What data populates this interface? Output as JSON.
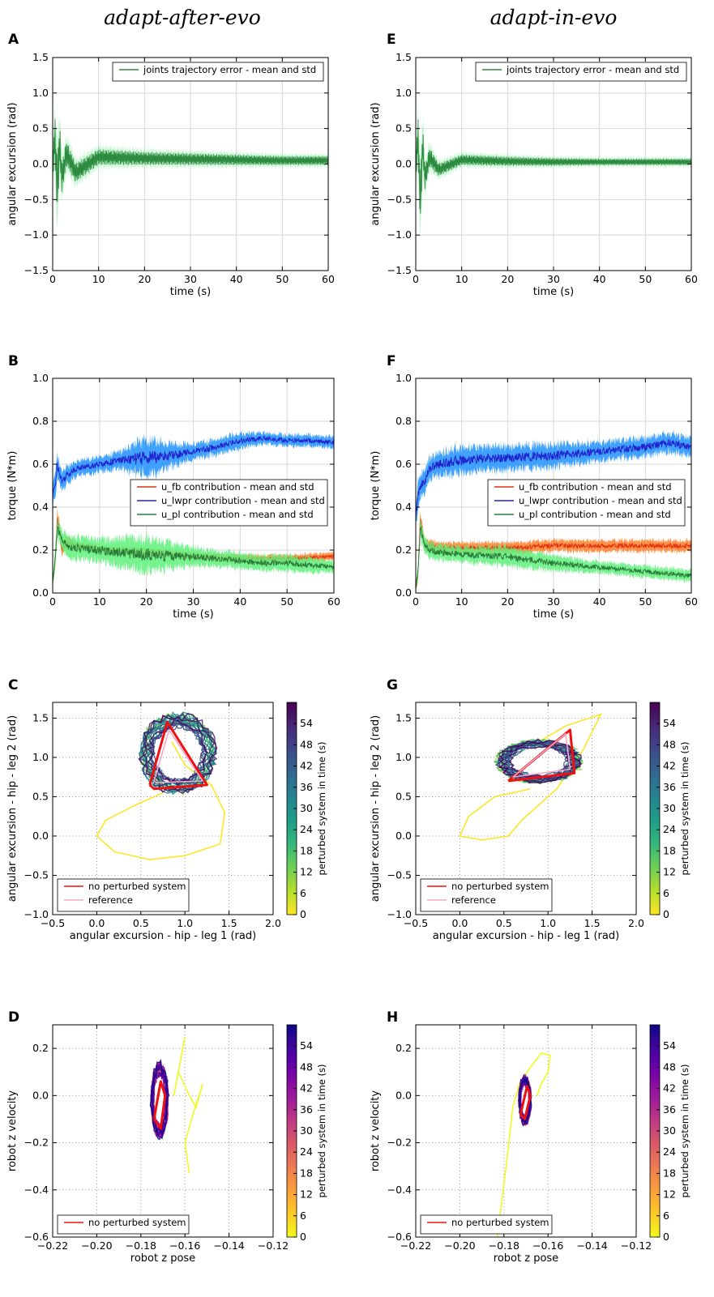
{
  "columns": [
    "adapt-after-evo",
    "adapt-in-evo"
  ],
  "colormaps": {
    "viridis_r": [
      "#fde725",
      "#b5de2b",
      "#6ece58",
      "#35b779",
      "#1f9e89",
      "#26828e",
      "#31688e",
      "#3e4989",
      "#482878",
      "#440154"
    ],
    "plasma_r": [
      "#f0f921",
      "#fdca26",
      "#fb9f3a",
      "#ed7953",
      "#d8576b",
      "#bd3786",
      "#9c179e",
      "#7201a8",
      "#46039f",
      "#0d0887"
    ]
  },
  "chart_data": [
    {
      "panel": "A",
      "type": "line",
      "xlabel": "time (s)",
      "ylabel": "angular excursion (rad)",
      "xlim": [
        0,
        60
      ],
      "ylim": [
        -1.5,
        1.5
      ],
      "xticks": [
        0,
        10,
        20,
        30,
        40,
        50,
        60
      ],
      "yticks": [
        -1.5,
        -1.0,
        -0.5,
        0.0,
        0.5,
        1.0,
        1.5
      ],
      "grid": true,
      "legend_position": "upper right",
      "series": [
        {
          "name": "joints trajectory error - mean and std",
          "color": "#2d8a3f",
          "band_color": "#7ee89a",
          "x": [
            0,
            0.5,
            1,
            1.5,
            2,
            3,
            5,
            10,
            20,
            30,
            40,
            50,
            60
          ],
          "mean": [
            0.0,
            0.35,
            -0.35,
            0.3,
            -0.2,
            0.15,
            -0.12,
            0.1,
            0.08,
            0.07,
            0.06,
            0.05,
            0.05
          ],
          "std": [
            0.2,
            0.35,
            0.5,
            0.35,
            0.25,
            0.2,
            0.15,
            0.12,
            0.1,
            0.09,
            0.08,
            0.07,
            0.07
          ]
        }
      ]
    },
    {
      "panel": "E",
      "type": "line",
      "xlabel": "time (s)",
      "ylabel": "angular excursion (rad)",
      "xlim": [
        0,
        60
      ],
      "ylim": [
        -1.5,
        1.5
      ],
      "xticks": [
        0,
        10,
        20,
        30,
        40,
        50,
        60
      ],
      "yticks": [
        -1.5,
        -1.0,
        -0.5,
        0.0,
        0.5,
        1.0,
        1.5
      ],
      "grid": true,
      "legend_position": "upper right",
      "series": [
        {
          "name": "joints trajectory error - mean and std",
          "color": "#2d8a3f",
          "band_color": "#7ee89a",
          "x": [
            0,
            0.5,
            1,
            1.5,
            2,
            3,
            5,
            10,
            20,
            30,
            40,
            50,
            60
          ],
          "mean": [
            0.0,
            0.35,
            -0.55,
            0.3,
            -0.2,
            0.1,
            -0.08,
            0.06,
            0.04,
            0.03,
            0.03,
            0.03,
            0.03
          ],
          "std": [
            0.2,
            0.35,
            0.45,
            0.3,
            0.2,
            0.15,
            0.1,
            0.08,
            0.07,
            0.06,
            0.05,
            0.05,
            0.05
          ]
        }
      ]
    },
    {
      "panel": "B",
      "type": "line",
      "xlabel": "time (s)",
      "ylabel": "torque (N*m)",
      "xlim": [
        0,
        60
      ],
      "ylim": [
        0.0,
        1.0
      ],
      "xticks": [
        0,
        10,
        20,
        30,
        40,
        50,
        60
      ],
      "yticks": [
        0.0,
        0.2,
        0.4,
        0.6,
        0.8,
        1.0
      ],
      "grid": true,
      "legend_position": "center right",
      "series": [
        {
          "name": "u_lwpr contribution - mean and std",
          "color": "#2222cc",
          "band_color": "#1e90ff",
          "x": [
            0,
            0.5,
            1,
            2,
            3,
            5,
            10,
            15,
            20,
            25,
            30,
            35,
            40,
            45,
            50,
            55,
            60
          ],
          "mean": [
            0.45,
            0.5,
            0.6,
            0.52,
            0.55,
            0.58,
            0.6,
            0.62,
            0.63,
            0.64,
            0.66,
            0.68,
            0.71,
            0.72,
            0.71,
            0.71,
            0.7
          ],
          "std": [
            0.05,
            0.08,
            0.06,
            0.05,
            0.05,
            0.04,
            0.04,
            0.05,
            0.1,
            0.06,
            0.04,
            0.04,
            0.04,
            0.03,
            0.03,
            0.03,
            0.03
          ]
        },
        {
          "name": "u_fb contribution - mean and std",
          "color": "#e03010",
          "band_color": "#ff7f2a",
          "x": [
            0,
            0.5,
            1,
            2,
            3,
            5,
            10,
            20,
            30,
            40,
            50,
            60
          ],
          "mean": [
            0.05,
            0.15,
            0.35,
            0.2,
            0.24,
            0.22,
            0.2,
            0.19,
            0.17,
            0.16,
            0.16,
            0.17
          ],
          "std": [
            0.02,
            0.04,
            0.05,
            0.03,
            0.03,
            0.02,
            0.02,
            0.02,
            0.02,
            0.02,
            0.02,
            0.02
          ]
        },
        {
          "name": "u_pl contribution - mean and std",
          "color": "#2a7a3a",
          "band_color": "#5ef07a",
          "x": [
            0,
            0.5,
            1,
            2,
            3,
            5,
            10,
            15,
            20,
            25,
            30,
            35,
            40,
            45,
            50,
            55,
            60
          ],
          "mean": [
            0.05,
            0.15,
            0.3,
            0.25,
            0.22,
            0.21,
            0.2,
            0.19,
            0.18,
            0.17,
            0.17,
            0.16,
            0.15,
            0.14,
            0.14,
            0.13,
            0.12
          ],
          "std": [
            0.02,
            0.05,
            0.05,
            0.05,
            0.06,
            0.06,
            0.06,
            0.08,
            0.09,
            0.07,
            0.05,
            0.04,
            0.04,
            0.04,
            0.04,
            0.04,
            0.03
          ]
        }
      ]
    },
    {
      "panel": "F",
      "type": "line",
      "xlabel": "time (s)",
      "ylabel": "torque (N*m)",
      "xlim": [
        0,
        60
      ],
      "ylim": [
        0.0,
        1.0
      ],
      "xticks": [
        0,
        10,
        20,
        30,
        40,
        50,
        60
      ],
      "yticks": [
        0.0,
        0.2,
        0.4,
        0.6,
        0.8,
        1.0
      ],
      "grid": true,
      "legend_position": "center right",
      "series": [
        {
          "name": "u_lwpr contribution - mean and std",
          "color": "#2222cc",
          "band_color": "#1e90ff",
          "x": [
            0,
            0.5,
            1,
            2,
            3,
            5,
            10,
            20,
            30,
            40,
            50,
            55,
            60
          ],
          "mean": [
            0.35,
            0.45,
            0.5,
            0.52,
            0.58,
            0.6,
            0.62,
            0.63,
            0.64,
            0.66,
            0.68,
            0.7,
            0.68
          ],
          "std": [
            0.05,
            0.08,
            0.06,
            0.06,
            0.06,
            0.06,
            0.07,
            0.06,
            0.06,
            0.05,
            0.05,
            0.05,
            0.05
          ]
        },
        {
          "name": "u_fb contribution - mean and std",
          "color": "#e03010",
          "band_color": "#ff7f2a",
          "x": [
            0,
            0.5,
            1,
            2,
            3,
            5,
            10,
            20,
            30,
            40,
            50,
            60
          ],
          "mean": [
            0.02,
            0.1,
            0.35,
            0.22,
            0.22,
            0.21,
            0.21,
            0.21,
            0.22,
            0.22,
            0.22,
            0.22
          ],
          "std": [
            0.02,
            0.04,
            0.04,
            0.03,
            0.03,
            0.03,
            0.03,
            0.03,
            0.03,
            0.03,
            0.03,
            0.03
          ]
        },
        {
          "name": "u_pl contribution - mean and std",
          "color": "#2a7a3a",
          "band_color": "#5ef07a",
          "x": [
            0,
            0.5,
            1,
            2,
            3,
            5,
            10,
            20,
            30,
            40,
            50,
            60
          ],
          "mean": [
            0.02,
            0.1,
            0.3,
            0.22,
            0.2,
            0.19,
            0.18,
            0.17,
            0.14,
            0.12,
            0.1,
            0.08
          ],
          "std": [
            0.02,
            0.04,
            0.05,
            0.04,
            0.04,
            0.04,
            0.04,
            0.05,
            0.04,
            0.03,
            0.03,
            0.03
          ]
        }
      ]
    },
    {
      "panel": "C",
      "type": "line",
      "xlabel": "angular excursion - hip - leg 1 (rad)",
      "ylabel": "angular excursion - hip - leg 2 (rad)",
      "xlim": [
        -0.5,
        2.0
      ],
      "ylim": [
        -1.0,
        1.7
      ],
      "xticks": [
        -0.5,
        0.0,
        0.5,
        1.0,
        1.5,
        2.0
      ],
      "yticks": [
        -1.0,
        -0.5,
        0.0,
        0.5,
        1.0,
        1.5
      ],
      "grid": true,
      "grid_style": "dotted",
      "legend_position": "lower left",
      "colorbar": {
        "label": "perturbed system in time (s)",
        "cmap": "viridis_r",
        "range": [
          0,
          60
        ],
        "ticks": [
          0,
          6,
          12,
          18,
          24,
          30,
          36,
          42,
          48,
          54
        ]
      },
      "loops": {
        "type": "limit-cycle",
        "cx": 0.92,
        "cy": 1.05,
        "rx": 0.38,
        "ry": 0.45,
        "tilt": 0.0,
        "count": 22
      },
      "transient": {
        "x": [
          0.75,
          0.45,
          0.1,
          0.0,
          0.2,
          0.6,
          1.0,
          1.4,
          1.45,
          1.3,
          1.0,
          0.85
        ],
        "y": [
          0.55,
          0.4,
          0.2,
          0.0,
          -0.2,
          -0.3,
          -0.25,
          -0.1,
          0.3,
          0.65,
          0.9,
          1.2
        ]
      },
      "series": [
        {
          "name": "no perturbed system",
          "color": "#ee1111",
          "x": [
            0.6,
            0.8,
            1.25,
            0.65,
            0.6
          ],
          "y": [
            0.65,
            1.45,
            0.65,
            0.6,
            0.65
          ]
        },
        {
          "name": "reference",
          "color": "#f7a8c8",
          "x": [
            0.65,
            0.82,
            1.2,
            0.68,
            0.65
          ],
          "y": [
            0.7,
            1.35,
            0.7,
            0.68,
            0.7
          ]
        }
      ]
    },
    {
      "panel": "G",
      "type": "line",
      "xlabel": "angular excursion - hip - leg 1 (rad)",
      "ylabel": "angular excursion - hip - leg 2 (rad)",
      "xlim": [
        -0.5,
        2.0
      ],
      "ylim": [
        -1.0,
        1.7
      ],
      "xticks": [
        -0.5,
        0.0,
        0.5,
        1.0,
        1.5,
        2.0
      ],
      "yticks": [
        -1.0,
        -0.5,
        0.0,
        0.5,
        1.0,
        1.5
      ],
      "grid": true,
      "grid_style": "dotted",
      "legend_position": "lower left",
      "colorbar": {
        "label": "perturbed system in time (s)",
        "cmap": "viridis_r",
        "range": [
          0,
          60
        ],
        "ticks": [
          0,
          6,
          12,
          18,
          24,
          30,
          36,
          42,
          48,
          54
        ]
      },
      "loops": {
        "type": "limit-cycle",
        "cx": 0.9,
        "cy": 0.95,
        "rx": 0.42,
        "ry": 0.24,
        "tilt": 0.55,
        "count": 22
      },
      "transient": {
        "x": [
          0.8,
          0.4,
          0.1,
          0.0,
          0.25,
          0.55,
          0.7,
          1.1,
          1.4,
          1.6,
          1.2,
          0.9
        ],
        "y": [
          0.6,
          0.5,
          0.25,
          0.0,
          -0.05,
          0.0,
          0.2,
          0.6,
          1.1,
          1.55,
          1.4,
          1.2
        ]
      },
      "series": [
        {
          "name": "no perturbed system",
          "color": "#ee1111",
          "x": [
            0.55,
            1.25,
            1.3,
            0.55
          ],
          "y": [
            0.7,
            1.35,
            0.8,
            0.7
          ]
        },
        {
          "name": "reference",
          "color": "#f7a8c8",
          "x": [
            0.6,
            1.2,
            1.25,
            0.6
          ],
          "y": [
            0.75,
            1.3,
            0.85,
            0.75
          ]
        }
      ]
    },
    {
      "panel": "D",
      "type": "line",
      "xlabel": "robot z pose",
      "ylabel": "robot z velocity",
      "xlim": [
        -0.22,
        -0.12
      ],
      "ylim": [
        -0.6,
        0.3
      ],
      "xticks": [
        -0.22,
        -0.2,
        -0.18,
        -0.16,
        -0.14,
        -0.12
      ],
      "yticks": [
        -0.6,
        -0.4,
        -0.2,
        0.0,
        0.2
      ],
      "grid": true,
      "grid_style": "dotted",
      "legend_position": "lower left",
      "colorbar": {
        "label": "perturbed system in time (s)",
        "cmap": "plasma_r",
        "range": [
          0,
          60
        ],
        "ticks": [
          0,
          6,
          12,
          18,
          24,
          30,
          36,
          42,
          48,
          54
        ]
      },
      "loops": {
        "type": "limit-cycle",
        "cx": -0.1715,
        "cy": -0.02,
        "rx": 0.0035,
        "ry": 0.14,
        "tilt": 0.0,
        "count": 20
      },
      "transient": {
        "x": [
          -0.165,
          -0.162,
          -0.16,
          -0.163,
          -0.158,
          -0.155,
          -0.152,
          -0.157,
          -0.16,
          -0.158
        ],
        "y": [
          0.0,
          0.15,
          0.25,
          0.1,
          0.0,
          -0.05,
          0.05,
          -0.1,
          -0.2,
          -0.33
        ]
      },
      "series": [
        {
          "name": "no perturbed system",
          "color": "#ee1111",
          "x": [
            -0.174,
            -0.171,
            -0.169,
            -0.171,
            -0.174
          ],
          "y": [
            -0.1,
            0.06,
            0.0,
            -0.14,
            -0.1
          ]
        }
      ]
    },
    {
      "panel": "H",
      "type": "line",
      "xlabel": "robot z pose",
      "ylabel": "robot z velocity",
      "xlim": [
        -0.22,
        -0.12
      ],
      "ylim": [
        -0.6,
        0.3
      ],
      "xticks": [
        -0.22,
        -0.2,
        -0.18,
        -0.16,
        -0.14,
        -0.12
      ],
      "yticks": [
        -0.6,
        -0.4,
        -0.2,
        0.0,
        0.2
      ],
      "grid": true,
      "grid_style": "dotted",
      "legend_position": "lower left",
      "colorbar": {
        "label": "perturbed system in time (s)",
        "cmap": "plasma_r",
        "range": [
          0,
          60
        ],
        "ticks": [
          0,
          6,
          12,
          18,
          24,
          30,
          36,
          42,
          48,
          54
        ]
      },
      "loops": {
        "type": "limit-cycle",
        "cx": -0.1705,
        "cy": -0.02,
        "rx": 0.0025,
        "ry": 0.09,
        "tilt": 0.0,
        "count": 20
      },
      "transient": {
        "x": [
          -0.183,
          -0.179,
          -0.176,
          -0.173,
          -0.168,
          -0.163,
          -0.159,
          -0.16,
          -0.163,
          -0.165
        ],
        "y": [
          -0.6,
          -0.3,
          -0.05,
          0.05,
          0.12,
          0.18,
          0.17,
          0.1,
          0.05,
          0.0
        ]
      },
      "series": [
        {
          "name": "no perturbed system",
          "color": "#ee1111",
          "x": [
            -0.1725,
            -0.1695,
            -0.168,
            -0.1705,
            -0.1725
          ],
          "y": [
            -0.08,
            0.04,
            0.0,
            -0.1,
            -0.08
          ]
        }
      ]
    }
  ]
}
